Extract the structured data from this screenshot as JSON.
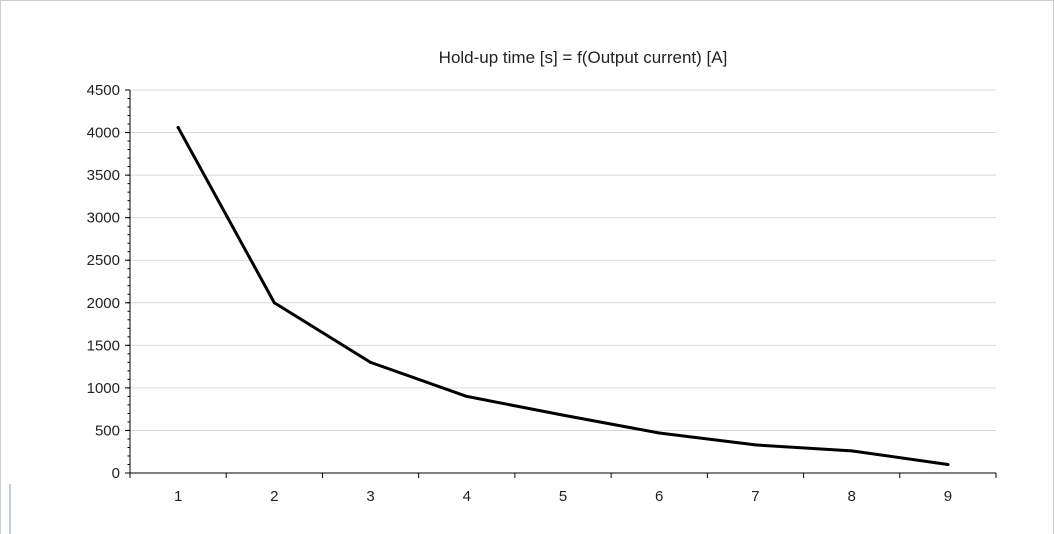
{
  "chart_data": {
    "type": "line",
    "title": "Hold-up time [s] = f(Output current) [A]",
    "xlabel": "",
    "ylabel": "",
    "categories": [
      "1",
      "2",
      "3",
      "4",
      "5",
      "6",
      "7",
      "8",
      "9"
    ],
    "series": [
      {
        "values": [
          4060,
          2000,
          1300,
          900,
          680,
          470,
          330,
          260,
          100
        ]
      }
    ],
    "ylim": [
      0,
      4500
    ],
    "yticks": [
      0,
      500,
      1000,
      1500,
      2000,
      2500,
      3000,
      3500,
      4000,
      4500
    ],
    "grid": "horizontal",
    "legend": "none",
    "colors": {
      "line": "#000000",
      "grid": "#d9d9d9",
      "axis": "#000000"
    }
  }
}
